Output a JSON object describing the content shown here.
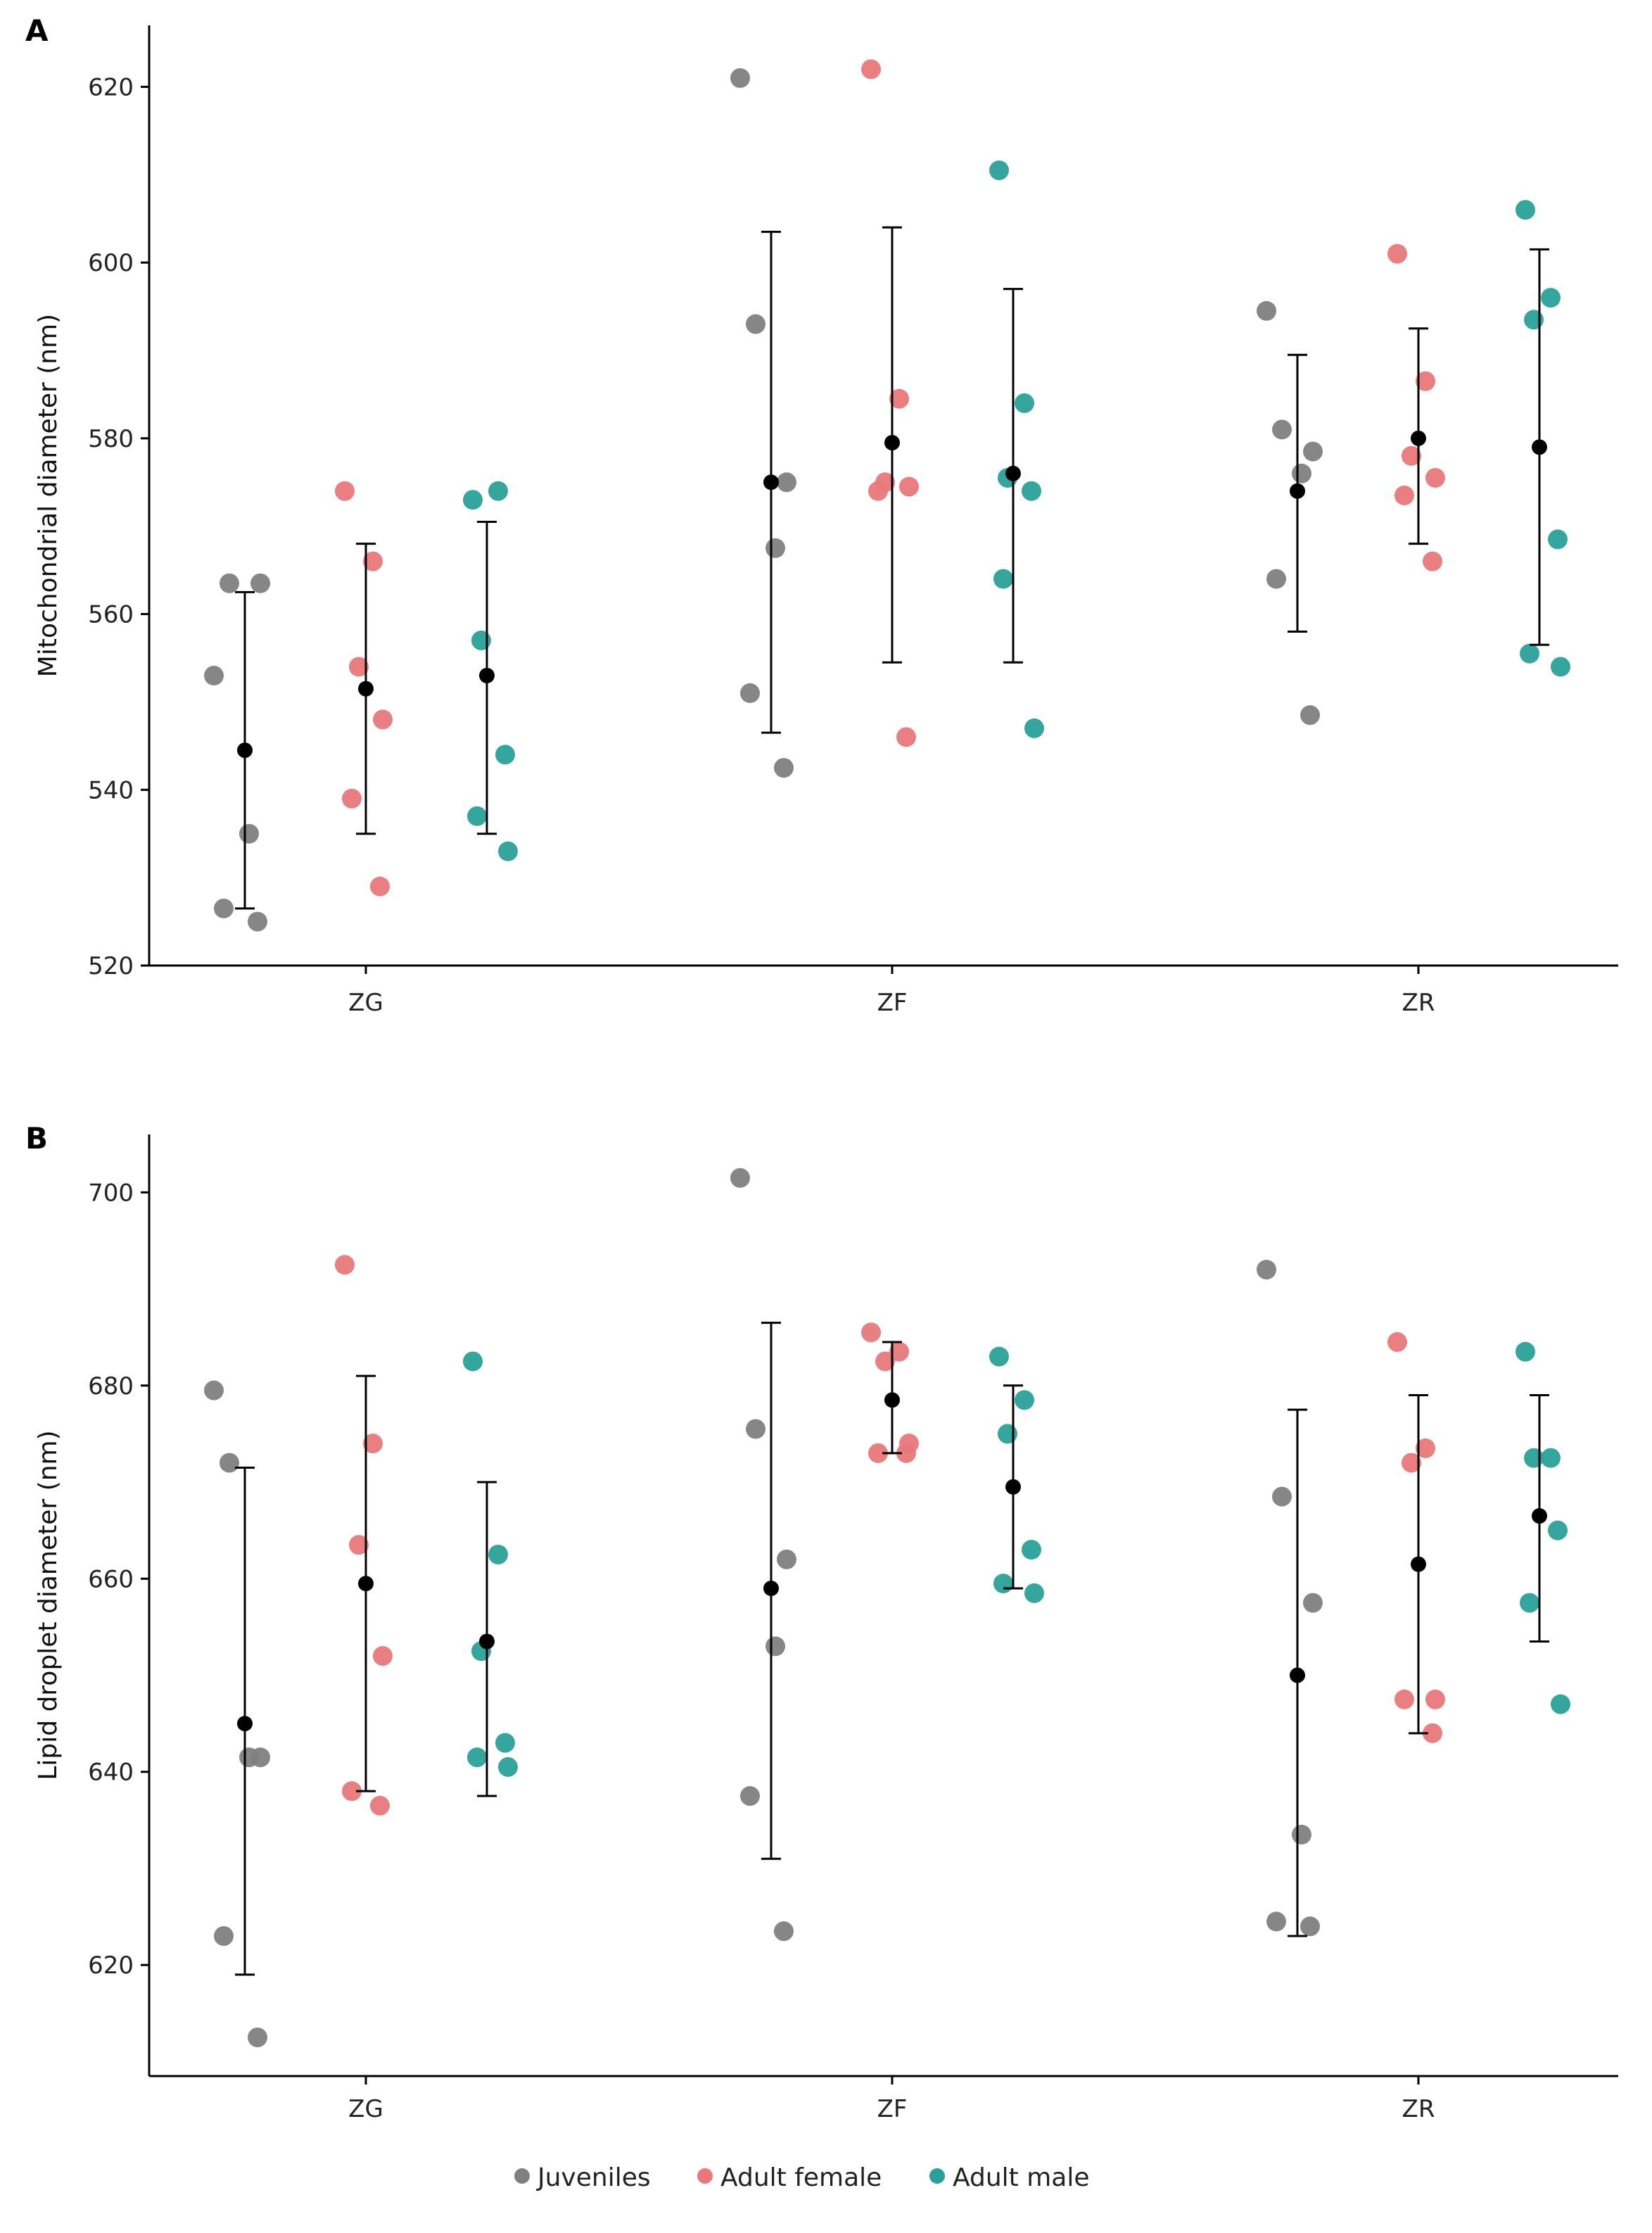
{
  "colors": {
    "Juveniles": "#808080",
    "Adult female": "#e8787a",
    "Adult male": "#2aa198",
    "summary": "#000000"
  },
  "legend": {
    "position": "bottom-center",
    "items": [
      "Juveniles",
      "Adult female",
      "Adult male"
    ]
  },
  "chart_data": [
    {
      "type": "scatter",
      "panel_label": "A",
      "ylabel": "Mitochondrial diameter (nm)",
      "xlabel": "",
      "categories": [
        "ZG",
        "ZF",
        "ZR"
      ],
      "ylim": [
        520,
        627
      ],
      "yticks": [
        520,
        540,
        560,
        580,
        600,
        620
      ],
      "grid": false,
      "series": [
        {
          "name": "Juveniles",
          "points": {
            "ZG": [
              553,
              563.5,
              563.5,
              535,
              526.5,
              525
            ],
            "ZF": [
              621,
              593,
              575,
              567.5,
              551,
              542.5
            ],
            "ZR": [
              594.5,
              581,
              578.5,
              576,
              564,
              548.5
            ]
          },
          "summary": {
            "ZG": {
              "mean": 544.5,
              "low": 526.5,
              "high": 562.5
            },
            "ZF": {
              "mean": 575,
              "low": 546.5,
              "high": 603.5
            },
            "ZR": {
              "mean": 574,
              "low": 558,
              "high": 589.5
            }
          }
        },
        {
          "name": "Adult female",
          "points": {
            "ZG": [
              574,
              566,
              554,
              548,
              539,
              529
            ],
            "ZF": [
              622,
              584.5,
              575,
              574.5,
              574,
              546
            ],
            "ZR": [
              601,
              586.5,
              578,
              575.5,
              573.5,
              566
            ]
          },
          "summary": {
            "ZG": {
              "mean": 551.5,
              "low": 535,
              "high": 568
            },
            "ZF": {
              "mean": 579.5,
              "low": 554.5,
              "high": 604
            },
            "ZR": {
              "mean": 580,
              "low": 568,
              "high": 592.5
            }
          }
        },
        {
          "name": "Adult male",
          "points": {
            "ZG": [
              573,
              574,
              557,
              544,
              537,
              533
            ],
            "ZF": [
              610.5,
              584,
              575.5,
              574,
              564,
              547
            ],
            "ZR": [
              606,
              596,
              593.5,
              568.5,
              555.5,
              554
            ]
          },
          "summary": {
            "ZG": {
              "mean": 553,
              "low": 535,
              "high": 570.5
            },
            "ZF": {
              "mean": 576,
              "low": 554.5,
              "high": 597
            },
            "ZR": {
              "mean": 579,
              "low": 556.5,
              "high": 601.5
            }
          }
        }
      ]
    },
    {
      "type": "scatter",
      "panel_label": "B",
      "ylabel": "Lipid droplet diameter (nm)",
      "xlabel": "",
      "categories": [
        "ZG",
        "ZF",
        "ZR"
      ],
      "ylim": [
        608.5,
        706
      ],
      "yticks": [
        620,
        640,
        660,
        680,
        700
      ],
      "grid": false,
      "series": [
        {
          "name": "Juveniles",
          "points": {
            "ZG": [
              679.5,
              672,
              641.5,
              641.5,
              623,
              612.5
            ],
            "ZF": [
              701.5,
              675.5,
              662,
              653,
              637.5,
              623.5
            ],
            "ZR": [
              692,
              668.5,
              657.5,
              633.5,
              624.5,
              624
            ]
          },
          "summary": {
            "ZG": {
              "mean": 645,
              "low": 619,
              "high": 671.5
            },
            "ZF": {
              "mean": 659,
              "low": 631,
              "high": 686.5
            },
            "ZR": {
              "mean": 650,
              "low": 623,
              "high": 677.5
            }
          }
        },
        {
          "name": "Adult female",
          "points": {
            "ZG": [
              692.5,
              674,
              663.5,
              652,
              638,
              636.5
            ],
            "ZF": [
              685.5,
              683.5,
              682.5,
              674,
              673,
              673
            ],
            "ZR": [
              684.5,
              673.5,
              672,
              647.5,
              647.5,
              644
            ]
          },
          "summary": {
            "ZG": {
              "mean": 659.5,
              "low": 638,
              "high": 681
            },
            "ZF": {
              "mean": 678.5,
              "low": 673,
              "high": 684.5
            },
            "ZR": {
              "mean": 661.5,
              "low": 644,
              "high": 679
            }
          }
        },
        {
          "name": "Adult male",
          "points": {
            "ZG": [
              682.5,
              662.5,
              652.5,
              643,
              641.5,
              640.5
            ],
            "ZF": [
              683,
              678.5,
              675,
              663,
              659.5,
              658.5
            ],
            "ZR": [
              683.5,
              672.5,
              672.5,
              665,
              657.5,
              647
            ]
          },
          "summary": {
            "ZG": {
              "mean": 653.5,
              "low": 637.5,
              "high": 670
            },
            "ZF": {
              "mean": 669.5,
              "low": 659,
              "high": 680
            },
            "ZR": {
              "mean": 666.5,
              "low": 653.5,
              "high": 679
            }
          }
        }
      ]
    }
  ]
}
